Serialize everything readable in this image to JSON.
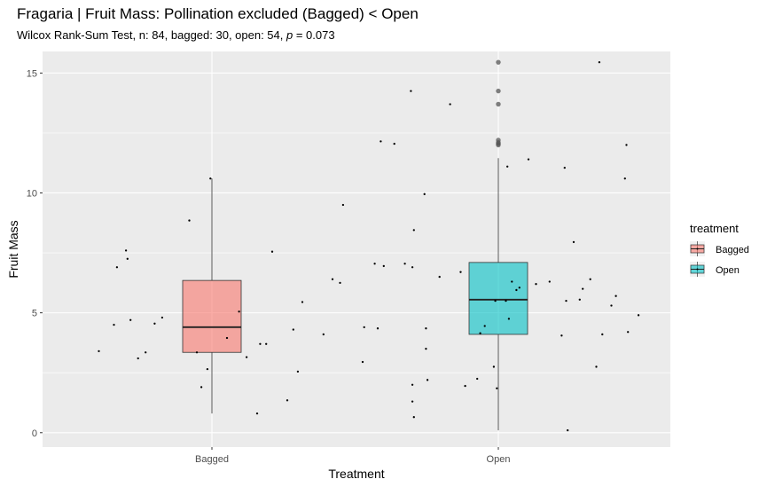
{
  "title": "Fragaria | Fruit Mass: Pollination excluded (Bagged) < Open",
  "subtitle": {
    "prefix": "Wilcox Rank-Sum Test, n: 84, bagged: 30, open: 54, ",
    "p_symbol": "p",
    "suffix": " = 0.073"
  },
  "chart_data": {
    "type": "box",
    "xlabel": "Treatment",
    "ylabel": "Fruit Mass",
    "categories": [
      "Bagged",
      "Open"
    ],
    "ylim": [
      -0.6,
      15.9
    ],
    "yticks": [
      0,
      5,
      10,
      15
    ],
    "grid": true,
    "panel_background": "#ebebeb",
    "legend": {
      "title": "treatment",
      "position": "right",
      "entries": [
        {
          "label": "Bagged",
          "color": "#f8766d"
        },
        {
          "label": "Open",
          "color": "#00bfc4"
        }
      ]
    },
    "boxes": [
      {
        "category": "Bagged",
        "color": "#f8766d",
        "lower_whisker": 0.8,
        "q1": 3.35,
        "median": 4.4,
        "q3": 6.35,
        "upper_whisker": 10.6,
        "outliers": []
      },
      {
        "category": "Open",
        "color": "#00bfc4",
        "lower_whisker": 0.1,
        "q1": 4.1,
        "median": 5.55,
        "q3": 7.1,
        "upper_whisker": 11.45,
        "outliers": [
          15.45,
          14.25,
          13.7,
          12.2,
          12.1,
          12.05,
          12.0
        ]
      }
    ],
    "jitter_points": {
      "Bagged": [
        {
          "x": -0.75,
          "y": 3.4
        },
        {
          "x": -0.65,
          "y": 4.5
        },
        {
          "x": -0.63,
          "y": 6.9
        },
        {
          "x": -0.57,
          "y": 7.6
        },
        {
          "x": -0.56,
          "y": 7.25
        },
        {
          "x": -0.54,
          "y": 4.7
        },
        {
          "x": -0.49,
          "y": 3.1
        },
        {
          "x": -0.44,
          "y": 3.35
        },
        {
          "x": -0.38,
          "y": 4.55
        },
        {
          "x": -0.33,
          "y": 4.8
        },
        {
          "x": -0.15,
          "y": 8.85
        },
        {
          "x": -0.1,
          "y": 3.35
        },
        {
          "x": -0.07,
          "y": 1.9
        },
        {
          "x": -0.03,
          "y": 2.65
        },
        {
          "x": -0.01,
          "y": 10.6
        },
        {
          "x": 0.1,
          "y": 3.95
        },
        {
          "x": 0.18,
          "y": 5.05
        },
        {
          "x": 0.23,
          "y": 3.15
        },
        {
          "x": 0.3,
          "y": 0.8
        },
        {
          "x": 0.32,
          "y": 3.7
        },
        {
          "x": 0.36,
          "y": 3.7
        },
        {
          "x": 0.4,
          "y": 7.55
        },
        {
          "x": 0.5,
          "y": 1.35
        },
        {
          "x": 0.54,
          "y": 4.3
        },
        {
          "x": 0.57,
          "y": 2.55
        },
        {
          "x": 0.6,
          "y": 5.45
        },
        {
          "x": 0.74,
          "y": 4.1
        },
        {
          "x": 0.8,
          "y": 6.4
        },
        {
          "x": 0.85,
          "y": 6.25
        },
        {
          "x": 0.87,
          "y": 9.5
        }
      ],
      "Open": [
        {
          "x": -0.9,
          "y": 2.95
        },
        {
          "x": -0.89,
          "y": 4.4
        },
        {
          "x": -0.82,
          "y": 7.05
        },
        {
          "x": -0.8,
          "y": 4.35
        },
        {
          "x": -0.78,
          "y": 12.15
        },
        {
          "x": -0.76,
          "y": 6.95
        },
        {
          "x": -0.69,
          "y": 12.05
        },
        {
          "x": -0.62,
          "y": 7.05
        },
        {
          "x": -0.58,
          "y": 14.25
        },
        {
          "x": -0.57,
          "y": 2.0
        },
        {
          "x": -0.57,
          "y": 6.9
        },
        {
          "x": -0.57,
          "y": 1.3
        },
        {
          "x": -0.56,
          "y": 8.45
        },
        {
          "x": -0.56,
          "y": 0.65
        },
        {
          "x": -0.49,
          "y": 9.95
        },
        {
          "x": -0.48,
          "y": 4.35
        },
        {
          "x": -0.48,
          "y": 3.5
        },
        {
          "x": -0.47,
          "y": 2.2
        },
        {
          "x": -0.39,
          "y": 6.5
        },
        {
          "x": -0.32,
          "y": 13.7
        },
        {
          "x": -0.25,
          "y": 6.7
        },
        {
          "x": -0.22,
          "y": 1.95
        },
        {
          "x": -0.14,
          "y": 2.25
        },
        {
          "x": -0.12,
          "y": 4.15
        },
        {
          "x": -0.09,
          "y": 4.45
        },
        {
          "x": -0.03,
          "y": 2.75
        },
        {
          "x": -0.01,
          "y": 1.85
        },
        {
          "x": -0.02,
          "y": 5.5
        },
        {
          "x": 0.05,
          "y": 5.5
        },
        {
          "x": 0.06,
          "y": 11.1
        },
        {
          "x": 0.07,
          "y": 4.75
        },
        {
          "x": 0.09,
          "y": 6.3
        },
        {
          "x": 0.12,
          "y": 5.95
        },
        {
          "x": 0.14,
          "y": 6.05
        },
        {
          "x": 0.2,
          "y": 11.4
        },
        {
          "x": 0.25,
          "y": 6.2
        },
        {
          "x": 0.34,
          "y": 6.3
        },
        {
          "x": 0.42,
          "y": 4.05
        },
        {
          "x": 0.44,
          "y": 11.05
        },
        {
          "x": 0.45,
          "y": 5.5
        },
        {
          "x": 0.46,
          "y": 0.1
        },
        {
          "x": 0.5,
          "y": 7.95
        },
        {
          "x": 0.54,
          "y": 5.55
        },
        {
          "x": 0.56,
          "y": 6.0
        },
        {
          "x": 0.61,
          "y": 6.4
        },
        {
          "x": 0.65,
          "y": 2.75
        },
        {
          "x": 0.67,
          "y": 15.45
        },
        {
          "x": 0.69,
          "y": 4.1
        },
        {
          "x": 0.75,
          "y": 5.3
        },
        {
          "x": 0.78,
          "y": 5.7
        },
        {
          "x": 0.84,
          "y": 10.6
        },
        {
          "x": 0.85,
          "y": 12.0
        },
        {
          "x": 0.86,
          "y": 4.2
        },
        {
          "x": 0.93,
          "y": 4.9
        }
      ]
    }
  }
}
